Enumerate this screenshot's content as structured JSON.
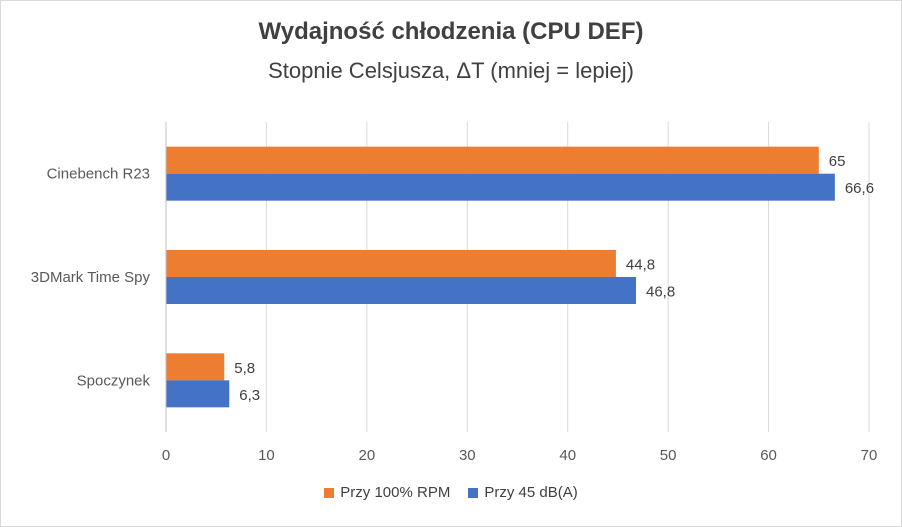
{
  "chart_data": {
    "type": "bar",
    "orientation": "horizontal",
    "title": "Wydajność chłodzenia (CPU DEF)",
    "subtitle": "Stopnie Celsjusza, ΔT (mniej = lepiej)",
    "categories": [
      "Cinebench R23",
      "3DMark Time Spy",
      "Spoczynek"
    ],
    "series": [
      {
        "name": "Przy 100% RPM",
        "color": "#ED7D31",
        "values": [
          65,
          44.8,
          5.8
        ],
        "labels": [
          "65",
          "44,8",
          "5,8"
        ]
      },
      {
        "name": "Przy 45 dB(A)",
        "color": "#4472C4",
        "values": [
          66.6,
          46.8,
          6.3
        ],
        "labels": [
          "66,6",
          "46,8",
          "6,3"
        ]
      }
    ],
    "xlim": [
      0,
      70
    ],
    "xticks": [
      "0",
      "10",
      "20",
      "30",
      "40",
      "50",
      "60",
      "70"
    ],
    "grid": true,
    "legend": "bottom"
  }
}
